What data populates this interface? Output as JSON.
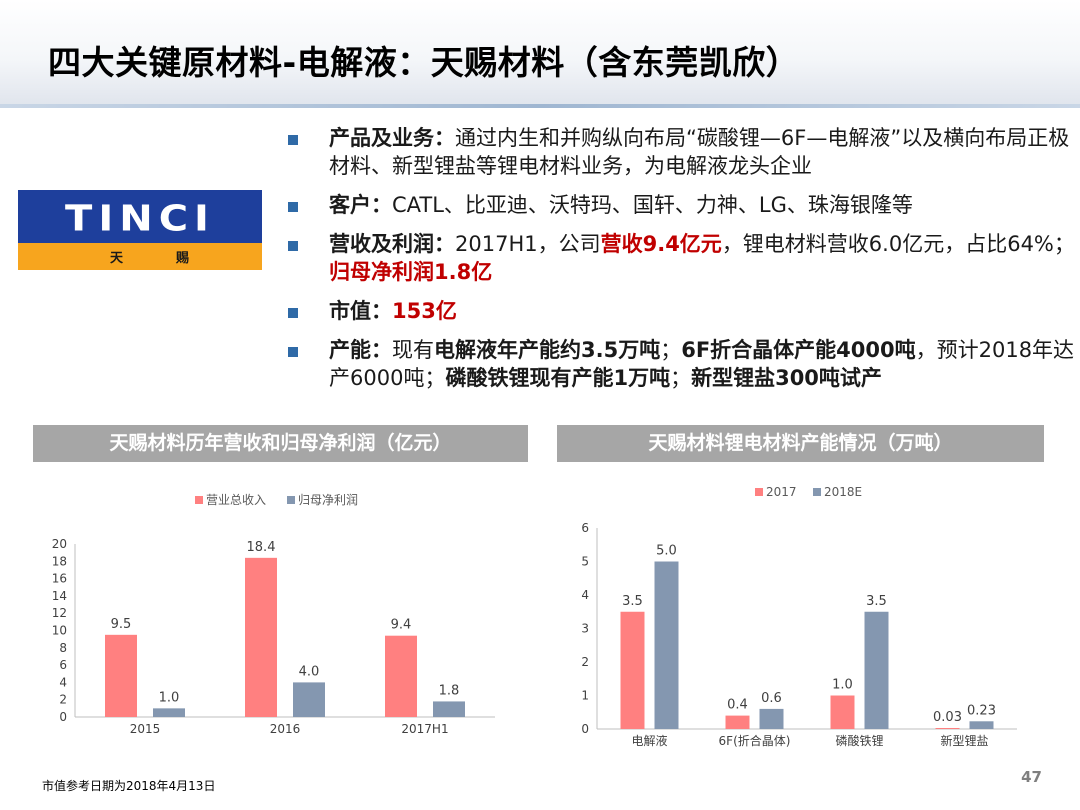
{
  "page": {
    "title": "四大关键原材料-电解液：天赐材料（含东莞凯欣）",
    "footnote": "市值参考日期为2018年4月13日",
    "page_number": "47"
  },
  "logo": {
    "wordmark": "TINCI",
    "cn_left": "天",
    "cn_right": "赐"
  },
  "bullets": {
    "product_label": "产品及业务：",
    "product_text": "通过内生和并购纵向布局“碳酸锂—6F—电解液”以及横向布局正极材料、新型锂盐等锂电材料业务，为电解液龙头企业",
    "customer_label": "客户：",
    "customer_text": "CATL、比亚迪、沃特玛、国轩、力神、LG、珠海银隆等",
    "revenue_label": "营收及利润：",
    "revenue_t1": "2017H1，公司",
    "revenue_h1": "营收9.4亿元",
    "revenue_t2": "，锂电材料营收6.0亿元，占比64%；",
    "revenue_h2": "归母净利润1.8亿",
    "mcap_label": "市值：",
    "mcap_value": "153亿",
    "capacity_label": "产能：",
    "capacity_t1": "现有",
    "capacity_b1": "电解液年产能约3.5万吨",
    "capacity_t2": "；",
    "capacity_b2": "6F折合晶体产能4000吨",
    "capacity_t3": "，预计2018年达产6000吨；",
    "capacity_b3": "磷酸铁锂现有产能1万吨",
    "capacity_t4": "；",
    "capacity_b4": "新型锂盐300吨试产"
  },
  "sections": {
    "left_header": "天赐材料历年营收和归母净利润（亿元）",
    "right_header": "天赐材料锂电材料产能情况（万吨）"
  },
  "colors": {
    "red_series": "#ff8080",
    "blue_series": "#8497b0",
    "accent_text": "#c00000"
  },
  "chart_data": [
    {
      "type": "bar",
      "categories": [
        "2015",
        "2016",
        "2017H1"
      ],
      "series": [
        {
          "name": "营业总收入",
          "values": [
            9.5,
            18.4,
            9.4
          ],
          "labels": [
            "9.5",
            "18.4",
            "9.4"
          ]
        },
        {
          "name": "归母净利润",
          "values": [
            1.0,
            4.0,
            1.8
          ],
          "labels": [
            "1.0",
            "4.0",
            "1.8"
          ]
        }
      ],
      "ylim": [
        0,
        20
      ],
      "yticks": [
        "0",
        "2",
        "4",
        "6",
        "8",
        "10",
        "12",
        "14",
        "16",
        "18",
        "20"
      ],
      "legend": "top-center",
      "grid": false
    },
    {
      "type": "bar",
      "categories": [
        "电解液",
        "6F(折合晶体)",
        "磷酸铁锂",
        "新型锂盐"
      ],
      "series": [
        {
          "name": "2017",
          "values": [
            3.5,
            0.4,
            1.0,
            0.03
          ],
          "labels": [
            "3.5",
            "0.4",
            "1.0",
            "0.03"
          ]
        },
        {
          "name": "2018E",
          "values": [
            5.0,
            0.6,
            3.5,
            0.23
          ],
          "labels": [
            "5.0",
            "0.6",
            "3.5",
            "0.23"
          ]
        }
      ],
      "ylim": [
        0,
        6
      ],
      "yticks": [
        "0",
        "1",
        "2",
        "3",
        "4",
        "5",
        "6"
      ],
      "legend": "top-center",
      "grid": false
    }
  ]
}
